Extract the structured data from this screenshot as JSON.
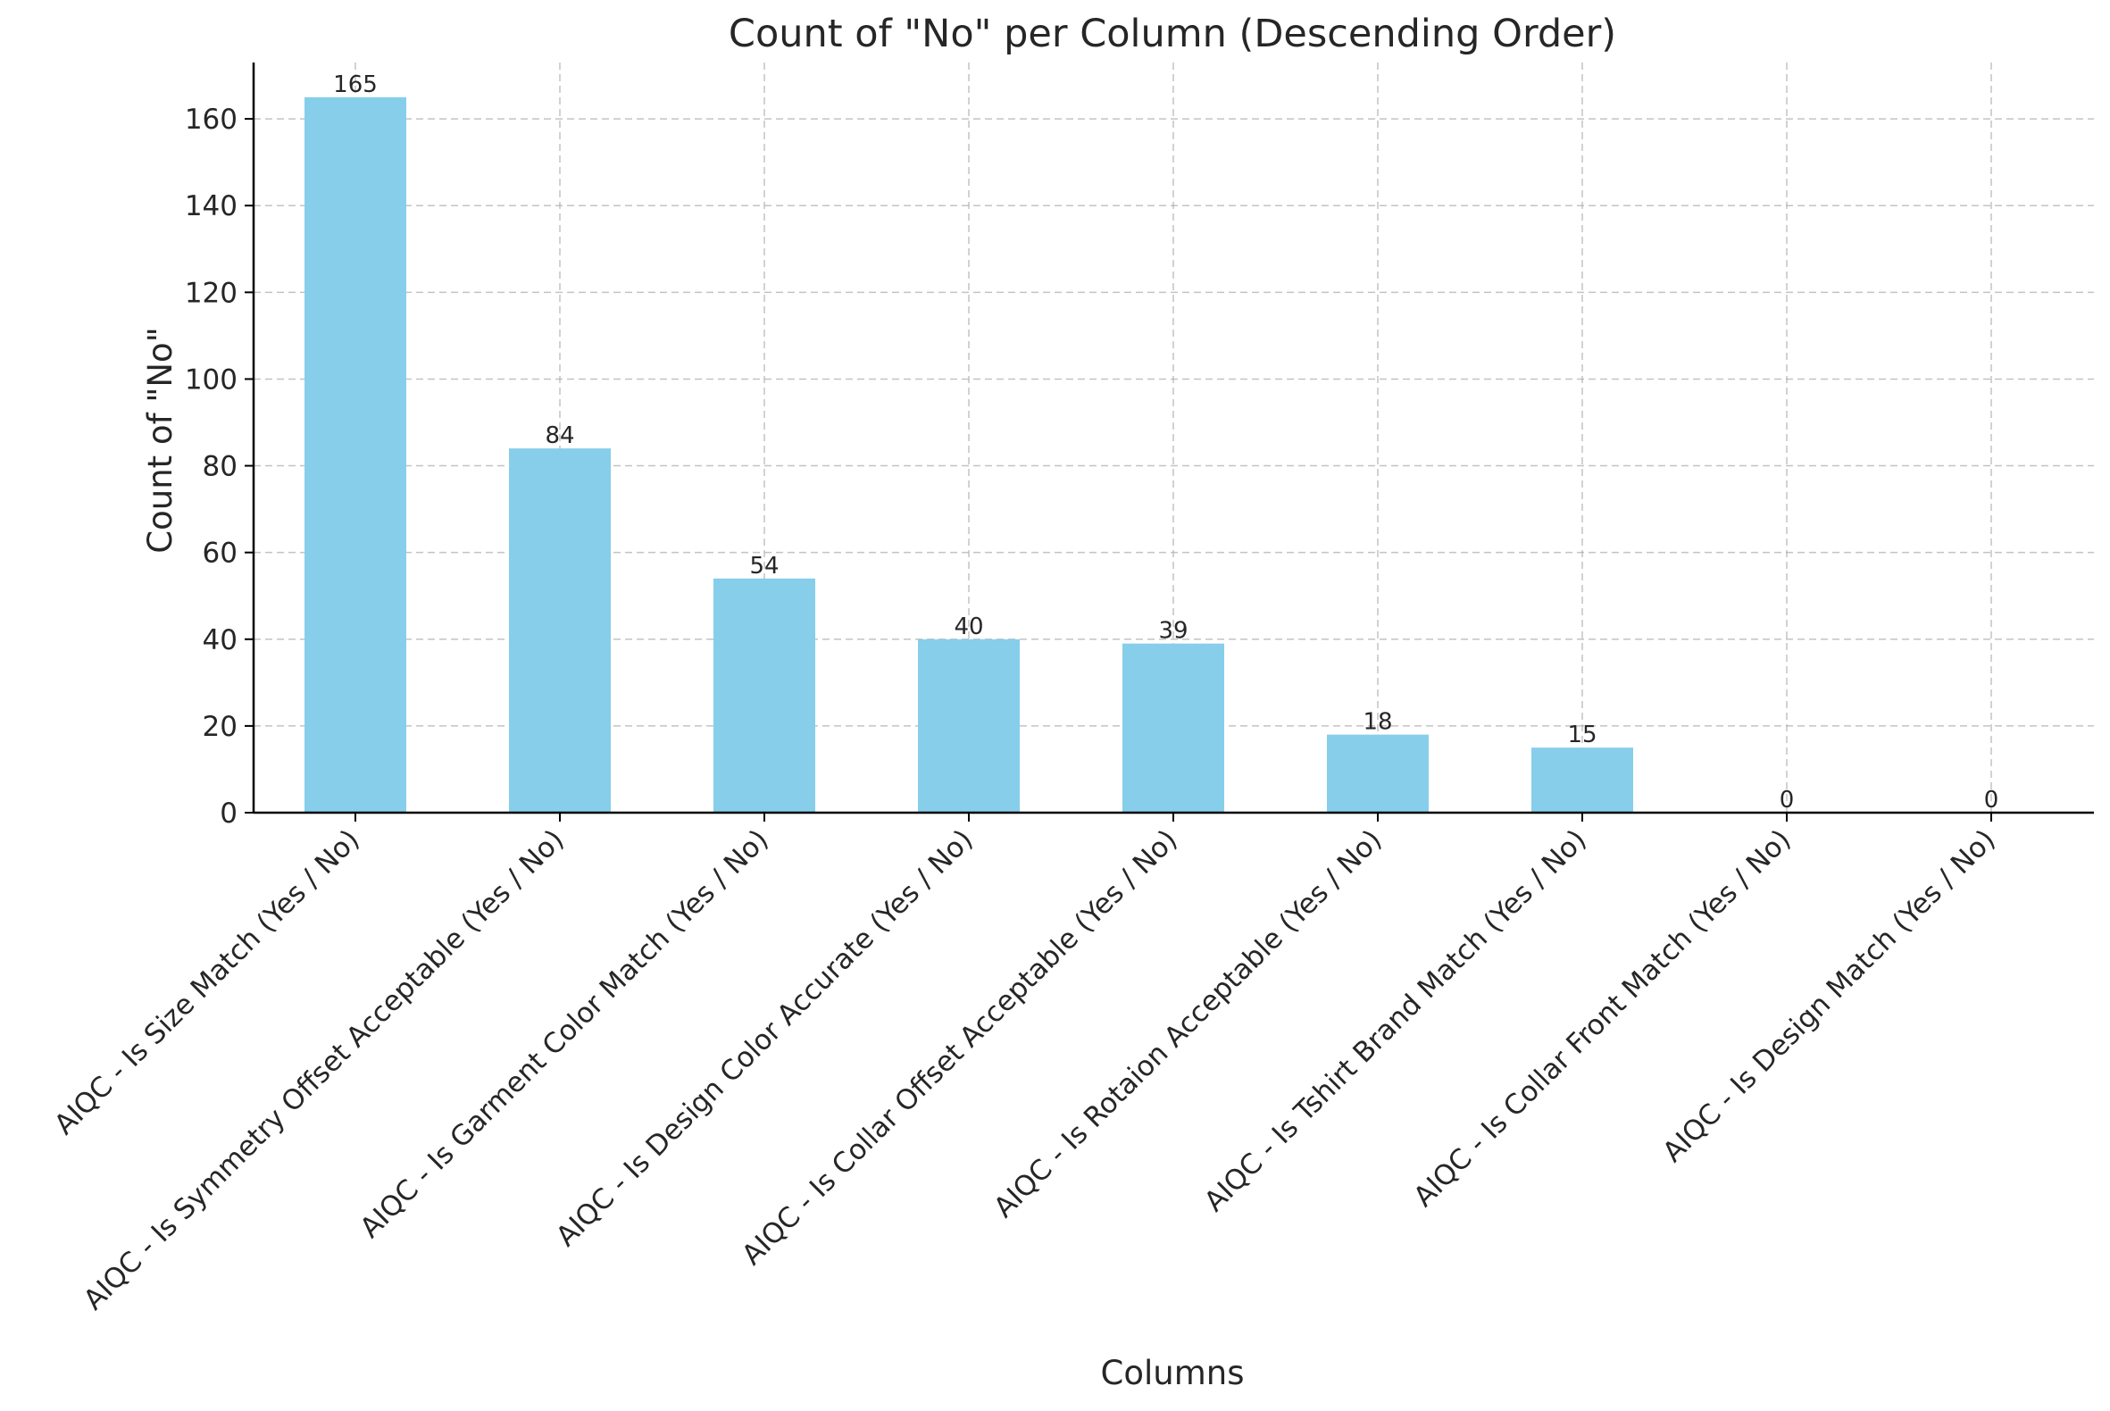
{
  "chart_data": {
    "type": "bar",
    "title": "Count of \"No\" per Column (Descending Order)",
    "xlabel": "Columns",
    "ylabel": "Count of \"No\"",
    "categories": [
      "AIQC - Is Size Match (Yes / No)",
      "AIQC - Is Symmetry Offset Acceptable (Yes / No)",
      "AIQC - Is Garment Color Match (Yes / No)",
      "AIQC - Is Design Color Accurate (Yes / No)",
      "AIQC - Is Collar Offset Acceptable (Yes / No)",
      "AIQC - Is Rotaion Acceptable (Yes / No)",
      "AIQC - Is Tshirt Brand Match (Yes / No)",
      "AIQC - Is Collar Front Match (Yes / No)",
      "AIQC - Is Design Match (Yes / No)"
    ],
    "values": [
      165,
      84,
      54,
      40,
      39,
      18,
      15,
      0,
      0
    ],
    "ylim": [
      0,
      173
    ],
    "yticks": [
      0,
      20,
      40,
      60,
      80,
      100,
      120,
      140,
      160
    ],
    "grid": true,
    "bar_color": "#87CEEB"
  }
}
